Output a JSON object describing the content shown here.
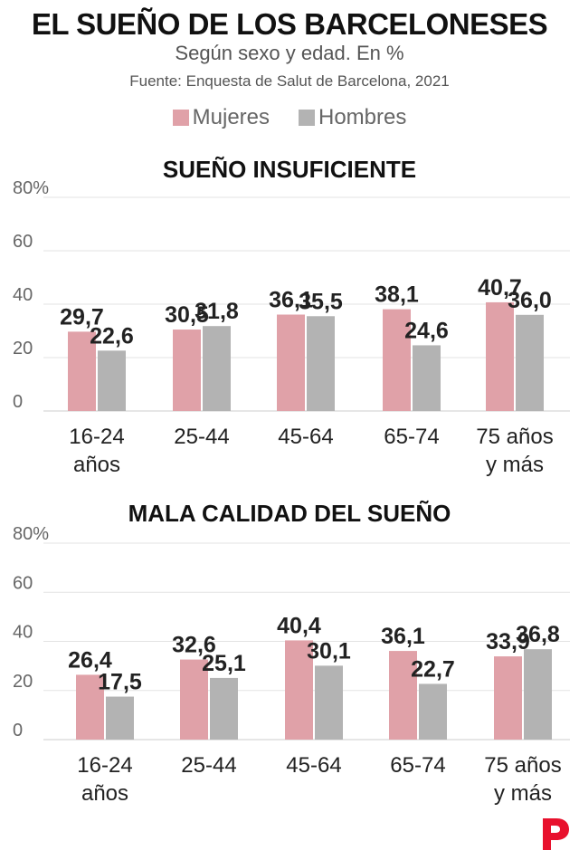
{
  "title": "EL SUEÑO DE LOS BARCELONESES",
  "subtitle": "Según sexo y edad. En %",
  "source": "Fuente: Enquesta de Salut de Barcelona, 2021",
  "legend": [
    {
      "name": "Mujeres",
      "color": "#e0a1a8"
    },
    {
      "name": "Hombres",
      "color": "#b3b3b3"
    }
  ],
  "logo": "publisher-logo",
  "chart_data": [
    {
      "type": "bar",
      "title": "SUEÑO INSUFICIENTE",
      "categories": [
        "16-24 años",
        "25-44",
        "45-64",
        "65-74",
        "75 años y más"
      ],
      "category_lines": [
        [
          "16-24",
          "años"
        ],
        [
          "25-44"
        ],
        [
          "45-64"
        ],
        [
          "65-74"
        ],
        [
          "75 años",
          "y más"
        ]
      ],
      "series": [
        {
          "name": "Mujeres",
          "color": "#e0a1a8",
          "values": [
            29.7,
            30.5,
            36.1,
            38.1,
            40.7
          ],
          "labels": [
            "29,7",
            "30,5",
            "36,1",
            "38,1",
            "40,7"
          ]
        },
        {
          "name": "Hombres",
          "color": "#b3b3b3",
          "values": [
            22.6,
            31.8,
            35.5,
            24.6,
            36.0
          ],
          "labels": [
            "22,6",
            "31,8",
            "35,5",
            "24,6",
            "36,0"
          ]
        }
      ],
      "yticks": [
        "0",
        "20",
        "40",
        "60",
        "80%"
      ],
      "ylim": [
        0,
        80
      ],
      "grid": true,
      "legend_position": "top"
    },
    {
      "type": "bar",
      "title": "MALA CALIDAD DEL SUEÑO",
      "categories": [
        "16-24 años",
        "25-44",
        "45-64",
        "65-74",
        "75 años y más"
      ],
      "category_lines": [
        [
          "16-24",
          "años"
        ],
        [
          "25-44"
        ],
        [
          "45-64"
        ],
        [
          "65-74"
        ],
        [
          "75 años",
          "y más"
        ]
      ],
      "series": [
        {
          "name": "Mujeres",
          "color": "#e0a1a8",
          "values": [
            26.4,
            32.6,
            40.4,
            36.1,
            33.9
          ],
          "labels": [
            "26,4",
            "32,6",
            "40,4",
            "36,1",
            "33,9"
          ]
        },
        {
          "name": "Hombres",
          "color": "#b3b3b3",
          "values": [
            17.5,
            25.1,
            30.1,
            22.7,
            36.8
          ],
          "labels": [
            "17,5",
            "25,1",
            "30,1",
            "22,7",
            "36,8"
          ]
        }
      ],
      "yticks": [
        "0",
        "20",
        "40",
        "60",
        "80%"
      ],
      "ylim": [
        0,
        80
      ],
      "grid": true,
      "legend_position": "top"
    }
  ]
}
